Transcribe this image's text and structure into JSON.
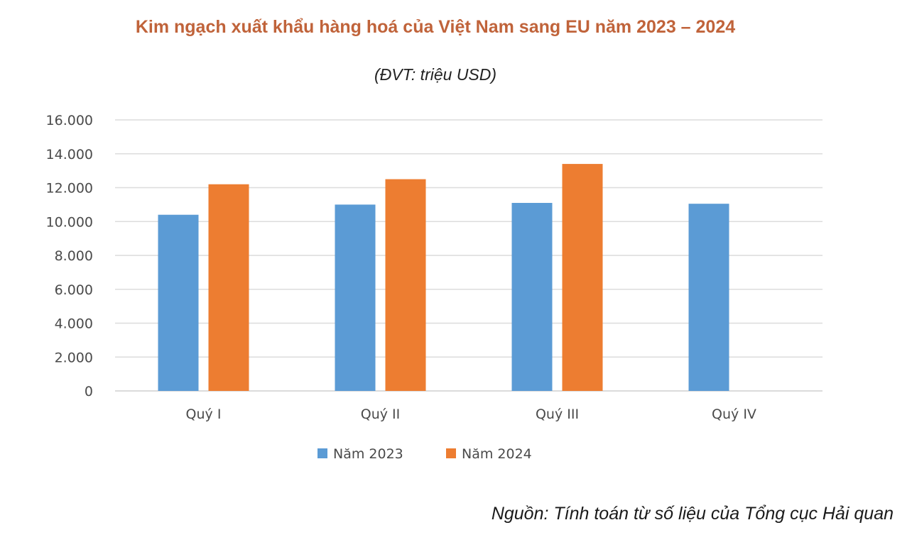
{
  "chart_data": {
    "type": "bar",
    "title": "Kim ngạch xuất khẩu hàng hoá của Việt Nam sang EU năm 2023 – 2024",
    "subtitle": "(ĐVT: triệu USD)",
    "categories": [
      "Quý I",
      "Quý II",
      "Quý III",
      "Quý IV"
    ],
    "series": [
      {
        "name": "Năm 2023",
        "color": "#5b9bd5",
        "values": [
          10400,
          11000,
          11100,
          11050
        ]
      },
      {
        "name": "Năm 2024",
        "color": "#ed7d31",
        "values": [
          12200,
          12500,
          13400,
          null
        ]
      }
    ],
    "yticks": [
      "0",
      "2.000",
      "4.000",
      "6.000",
      "8.000",
      "10.000",
      "12.000",
      "14.000",
      "16.000"
    ],
    "ylim": [
      0,
      16000
    ],
    "grid": true,
    "legend": "bottom",
    "source": "Nguồn: Tính toán từ số liệu của Tổng cục Hải quan"
  }
}
